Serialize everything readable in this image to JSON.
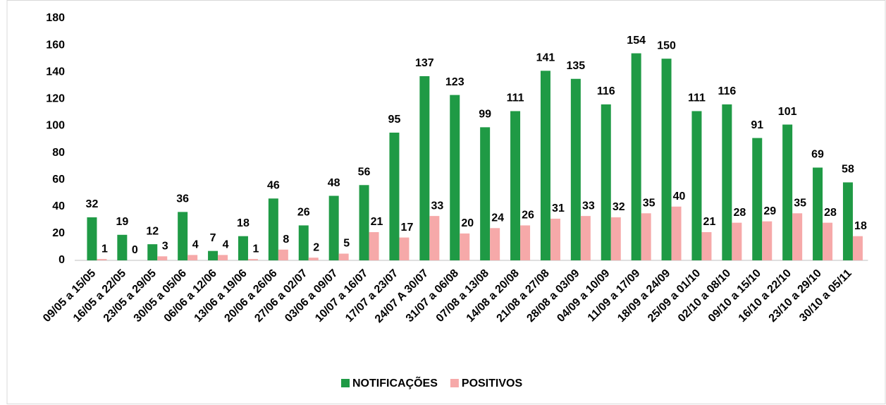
{
  "chart_data": {
    "type": "bar",
    "categories": [
      "09/05 a 15/05",
      "16/05 a 22/05",
      "23/05 a 29/05",
      "30/05 a 05/06",
      "06/06 a 12/06",
      "13/06 a 19/06",
      "20/06 a 26/06",
      "27/06 a 02/07",
      "03/06 a 09/07",
      "10/07 a 16/07",
      "17/07 a 23/07",
      "24/07 A 30/07",
      "31/07 a 06/08",
      "07/08 a 13/08",
      "14/08 a 20/08",
      "21/08 a 27/08",
      "28/08 a 03/09",
      "04/09 a 10/09",
      "11/09 a 17/09",
      "18/09 a 24/09",
      "25/09 a 01/10",
      "02/10 a 08/10",
      "09/10 a 15/10",
      "16/10 a 22/10",
      "23/10 a 29/10",
      "30/10 a 05/11"
    ],
    "series": [
      {
        "name": "NOTIFICAÇÕES",
        "color": "#1f9a45",
        "values": [
          32,
          19,
          12,
          36,
          7,
          18,
          46,
          26,
          48,
          56,
          95,
          137,
          123,
          99,
          111,
          141,
          135,
          116,
          154,
          150,
          111,
          116,
          91,
          101,
          69,
          58
        ]
      },
      {
        "name": "POSITIVOS",
        "color": "#f6a9a9",
        "values": [
          1,
          0,
          3,
          4,
          4,
          1,
          8,
          2,
          5,
          21,
          17,
          33,
          20,
          24,
          26,
          31,
          33,
          32,
          35,
          40,
          21,
          28,
          29,
          35,
          28,
          18
        ]
      }
    ],
    "ylim": [
      0,
      180
    ],
    "yticks": [
      0,
      20,
      40,
      60,
      80,
      100,
      120,
      140,
      160,
      180
    ],
    "grid": false,
    "legend": "bottom"
  }
}
